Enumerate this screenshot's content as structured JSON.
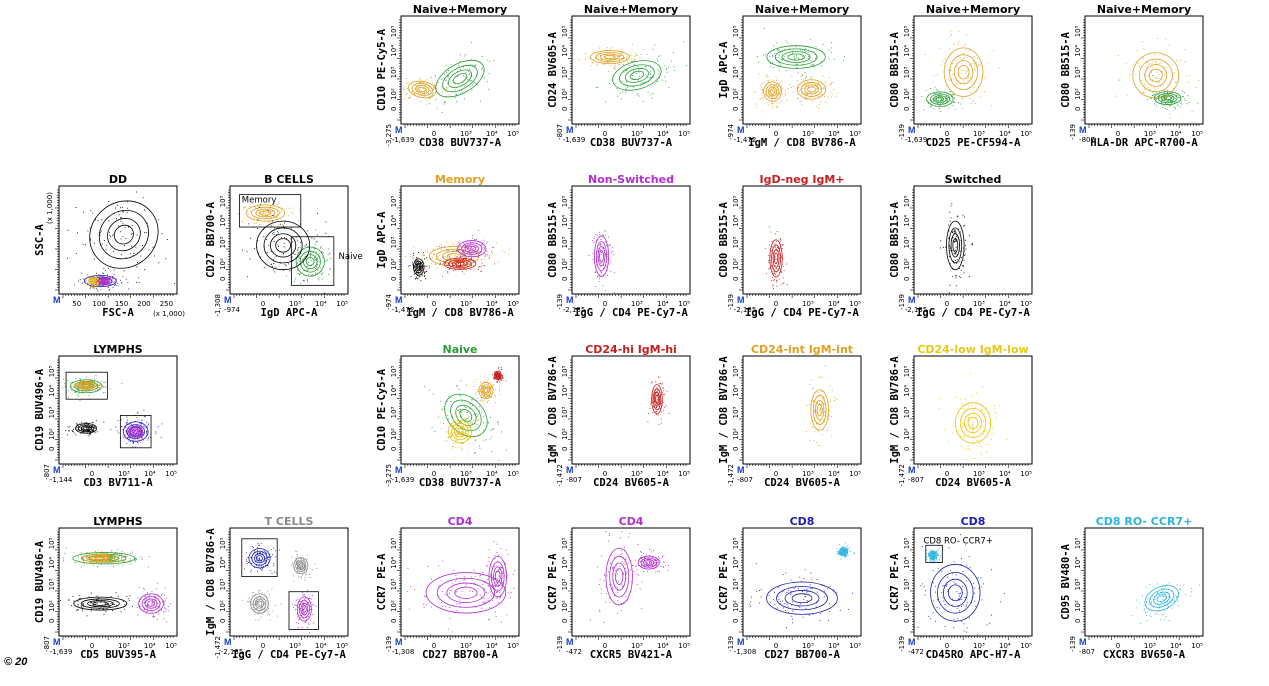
{
  "colors": {
    "green": "#2a9d3a",
    "orange": "#e0a020",
    "purple": "#b12fd0",
    "red": "#c81e1e",
    "black": "#000000",
    "grey": "#8a8a8a",
    "navy": "#1b1fb0",
    "cyan": "#2ab4e0",
    "yellow": "#f0c000",
    "gold": "#e8c81a"
  },
  "copyright": "© 20",
  "chart_data": [
    {
      "id": "p01",
      "type": "scatter",
      "title": "Naive+Memory",
      "title_color": "black",
      "xlabel": "CD38 BUV737-A",
      "ylabel": "CD10 PE-Cy5-A",
      "xmin": "-1,639",
      "ymin": "-3,275",
      "scale": "log",
      "populations": [
        {
          "color": "orange",
          "cx": 0.18,
          "cy": 0.32,
          "rx": 0.16,
          "ry": 0.1,
          "angle": 10
        },
        {
          "color": "green",
          "cx": 0.5,
          "cy": 0.42,
          "rx": 0.3,
          "ry": 0.18,
          "angle": -30
        }
      ]
    },
    {
      "id": "p02",
      "type": "scatter",
      "title": "Naive+Memory",
      "title_color": "black",
      "xlabel": "CD38 BUV737-A",
      "ylabel": "CD24 BV605-A",
      "xmin": "-1,639",
      "ymin": "-807",
      "scale": "log",
      "populations": [
        {
          "color": "orange",
          "cx": 0.32,
          "cy": 0.62,
          "rx": 0.22,
          "ry": 0.08,
          "angle": 0
        },
        {
          "color": "green",
          "cx": 0.55,
          "cy": 0.45,
          "rx": 0.28,
          "ry": 0.17,
          "angle": -15
        }
      ]
    },
    {
      "id": "p03",
      "type": "scatter",
      "title": "Naive+Memory",
      "title_color": "black",
      "xlabel": "IgM / CD8 BV786-A",
      "ylabel": "IgD APC-A",
      "xmin": "-1,472",
      "ymin": "-974",
      "scale": "log",
      "populations": [
        {
          "color": "green",
          "cx": 0.45,
          "cy": 0.62,
          "rx": 0.33,
          "ry": 0.14,
          "angle": 0
        },
        {
          "color": "orange",
          "cx": 0.25,
          "cy": 0.3,
          "rx": 0.1,
          "ry": 0.12,
          "angle": 0
        },
        {
          "color": "orange",
          "cx": 0.58,
          "cy": 0.32,
          "rx": 0.16,
          "ry": 0.12,
          "angle": 0
        }
      ]
    },
    {
      "id": "p04",
      "type": "scatter",
      "title": "Naive+Memory",
      "title_color": "black",
      "xlabel": "CD25 PE-CF594-A",
      "ylabel": "CD80 BB515-A",
      "xmin": "-1,639",
      "ymin": "-139",
      "scale": "log",
      "populations": [
        {
          "color": "orange",
          "cx": 0.42,
          "cy": 0.48,
          "rx": 0.22,
          "ry": 0.3,
          "angle": 0
        },
        {
          "color": "green",
          "cx": 0.22,
          "cy": 0.23,
          "rx": 0.15,
          "ry": 0.09,
          "angle": 0
        }
      ]
    },
    {
      "id": "p05",
      "type": "scatter",
      "title": "Naive+Memory",
      "title_color": "black",
      "xlabel": "HLA-DR APC-R700-A",
      "ylabel": "CD80 BB515-A",
      "xmin": "-807",
      "ymin": "-139",
      "scale": "log",
      "populations": [
        {
          "color": "orange",
          "cx": 0.6,
          "cy": 0.45,
          "rx": 0.26,
          "ry": 0.28,
          "angle": 0
        },
        {
          "color": "green",
          "cx": 0.7,
          "cy": 0.24,
          "rx": 0.15,
          "ry": 0.08,
          "angle": 0
        }
      ]
    },
    {
      "id": "p06",
      "type": "scatter",
      "title": "DD",
      "title_color": "black",
      "xlabel": "FSC-A",
      "ylabel": "SSC-A",
      "xmin": "",
      "ymin": "",
      "scale": "linear",
      "xunit": "(x 1,000)",
      "yunit": "(x 1,000)",
      "xticks": [
        "50",
        "100",
        "150",
        "200",
        "250"
      ],
      "populations": [
        {
          "color": "black",
          "cx": 0.55,
          "cy": 0.55,
          "rx": 0.4,
          "ry": 0.4,
          "angle": -40
        },
        {
          "color": "navy",
          "cx": 0.35,
          "cy": 0.12,
          "rx": 0.18,
          "ry": 0.07,
          "angle": 0
        },
        {
          "color": "yellow",
          "cx": 0.3,
          "cy": 0.12,
          "rx": 0.06,
          "ry": 0.04,
          "angle": 0
        },
        {
          "color": "purple",
          "cx": 0.38,
          "cy": 0.12,
          "rx": 0.06,
          "ry": 0.04,
          "angle": 0
        }
      ]
    },
    {
      "id": "p07",
      "type": "scatter",
      "title": "B CELLS",
      "title_color": "black",
      "xlabel": "IgD APC-A",
      "ylabel": "CD27 BB700-A",
      "xmin": "-974",
      "ymin": "-1,308",
      "scale": "log",
      "gates": [
        {
          "label": "Memory"
        },
        {
          "label": "Naive"
        }
      ],
      "populations": [
        {
          "color": "orange",
          "cx": 0.3,
          "cy": 0.75,
          "rx": 0.22,
          "ry": 0.1,
          "angle": 0
        },
        {
          "color": "green",
          "cx": 0.68,
          "cy": 0.3,
          "rx": 0.16,
          "ry": 0.18,
          "angle": 0
        },
        {
          "color": "black",
          "cx": 0.45,
          "cy": 0.45,
          "rx": 0.3,
          "ry": 0.3,
          "angle": 0
        }
      ]
    },
    {
      "id": "p08",
      "type": "scatter",
      "title": "Memory",
      "title_color": "orange",
      "xlabel": "IgM / CD8 BV786-A",
      "ylabel": "IgD APC-A",
      "xmin": "-1,472",
      "ymin": "-974",
      "scale": "log",
      "populations": [
        {
          "color": "black",
          "cx": 0.15,
          "cy": 0.25,
          "rx": 0.06,
          "ry": 0.1,
          "angle": 0
        },
        {
          "color": "orange",
          "cx": 0.45,
          "cy": 0.35,
          "rx": 0.28,
          "ry": 0.12,
          "angle": 0
        },
        {
          "color": "purple",
          "cx": 0.6,
          "cy": 0.42,
          "rx": 0.16,
          "ry": 0.1,
          "angle": 0
        },
        {
          "color": "red",
          "cx": 0.5,
          "cy": 0.28,
          "rx": 0.18,
          "ry": 0.07,
          "angle": 0
        }
      ]
    },
    {
      "id": "p09",
      "type": "scatter",
      "title": "Non-Switched",
      "title_color": "purple",
      "xlabel": "IgG / CD4 PE-Cy7-A",
      "ylabel": "CD80 BB515-A",
      "xmin": "-2,135",
      "ymin": "-139",
      "scale": "log",
      "populations": [
        {
          "color": "purple",
          "cx": 0.25,
          "cy": 0.35,
          "rx": 0.08,
          "ry": 0.25,
          "angle": 0
        }
      ]
    },
    {
      "id": "p10",
      "type": "scatter",
      "title": "IgD-neg IgM+",
      "title_color": "red",
      "xlabel": "IgG / CD4 PE-Cy7-A",
      "ylabel": "CD80 BB515-A",
      "xmin": "-2,135",
      "ymin": "-139",
      "scale": "log",
      "populations": [
        {
          "color": "red",
          "cx": 0.28,
          "cy": 0.33,
          "rx": 0.07,
          "ry": 0.23,
          "angle": 0
        }
      ]
    },
    {
      "id": "p11",
      "type": "scatter",
      "title": "Switched",
      "title_color": "black",
      "xlabel": "IgG / CD4 PE-Cy7-A",
      "ylabel": "CD80 BB515-A",
      "xmin": "-2,135",
      "ymin": "-139",
      "scale": "log",
      "populations": [
        {
          "color": "black",
          "cx": 0.35,
          "cy": 0.45,
          "rx": 0.1,
          "ry": 0.3,
          "angle": 0
        }
      ]
    },
    {
      "id": "p12",
      "type": "scatter",
      "title": "LYMPHS",
      "title_color": "black",
      "xlabel": "CD3 BV711-A",
      "ylabel": "CD19 BUV496-A",
      "xmin": "-1,144",
      "ymin": "-807",
      "scale": "log",
      "populations": [
        {
          "color": "green",
          "cx": 0.23,
          "cy": 0.72,
          "rx": 0.18,
          "ry": 0.08,
          "angle": 0
        },
        {
          "color": "orange",
          "cx": 0.23,
          "cy": 0.73,
          "rx": 0.12,
          "ry": 0.05,
          "angle": 0
        },
        {
          "color": "black",
          "cx": 0.23,
          "cy": 0.33,
          "rx": 0.12,
          "ry": 0.06,
          "angle": 0
        },
        {
          "color": "navy",
          "cx": 0.65,
          "cy": 0.3,
          "rx": 0.14,
          "ry": 0.12,
          "angle": 0
        },
        {
          "color": "purple",
          "cx": 0.65,
          "cy": 0.3,
          "rx": 0.08,
          "ry": 0.07,
          "angle": 0
        }
      ]
    },
    {
      "id": "p13",
      "type": "scatter",
      "title": "Naive",
      "title_color": "green",
      "xlabel": "CD38 BUV737-A",
      "ylabel": "CD10 PE-Cy5-A",
      "xmin": "-1,639",
      "ymin": "-3,275",
      "scale": "log",
      "populations": [
        {
          "color": "green",
          "cx": 0.55,
          "cy": 0.45,
          "rx": 0.2,
          "ry": 0.3,
          "angle": -45
        },
        {
          "color": "yellow",
          "cx": 0.5,
          "cy": 0.3,
          "rx": 0.13,
          "ry": 0.14,
          "angle": 0
        },
        {
          "color": "orange",
          "cx": 0.72,
          "cy": 0.68,
          "rx": 0.08,
          "ry": 0.1,
          "angle": 0
        },
        {
          "color": "red",
          "cx": 0.82,
          "cy": 0.82,
          "rx": 0.04,
          "ry": 0.05,
          "angle": 0
        }
      ]
    },
    {
      "id": "p14",
      "type": "scatter",
      "title": "CD24-hi IgM-hi",
      "title_color": "red",
      "xlabel": "CD24 BV605-A",
      "ylabel": "IgM / CD8 BV786-A",
      "xmin": "-807",
      "ymin": "-1,472",
      "scale": "log",
      "populations": [
        {
          "color": "red",
          "cx": 0.72,
          "cy": 0.6,
          "rx": 0.06,
          "ry": 0.18,
          "angle": 0
        }
      ]
    },
    {
      "id": "p15",
      "type": "scatter",
      "title": "CD24-int IgM-int",
      "title_color": "orange",
      "xlabel": "CD24 BV605-A",
      "ylabel": "IgM / CD8 BV786-A",
      "xmin": "-807",
      "ymin": "-1,472",
      "scale": "log",
      "populations": [
        {
          "color": "orange",
          "cx": 0.65,
          "cy": 0.5,
          "rx": 0.1,
          "ry": 0.25,
          "angle": 0
        }
      ]
    },
    {
      "id": "p16",
      "type": "scatter",
      "title": "CD24-low IgM-low",
      "title_color": "gold",
      "xlabel": "CD24 BV605-A",
      "ylabel": "IgM / CD8 BV786-A",
      "xmin": "-807",
      "ymin": "-1,472",
      "scale": "log",
      "populations": [
        {
          "color": "yellow",
          "cx": 0.5,
          "cy": 0.38,
          "rx": 0.2,
          "ry": 0.25,
          "angle": 0
        }
      ]
    },
    {
      "id": "p17",
      "type": "scatter",
      "title": "LYMPHS",
      "title_color": "black",
      "xlabel": "CD5 BUV395-A",
      "ylabel": "CD19 BUV496-A",
      "xmin": "-1,639",
      "ymin": "-807",
      "scale": "log",
      "populations": [
        {
          "color": "green",
          "cx": 0.38,
          "cy": 0.72,
          "rx": 0.35,
          "ry": 0.07,
          "angle": 0
        },
        {
          "color": "orange",
          "cx": 0.35,
          "cy": 0.72,
          "rx": 0.2,
          "ry": 0.05,
          "angle": 0
        },
        {
          "color": "black",
          "cx": 0.35,
          "cy": 0.3,
          "rx": 0.3,
          "ry": 0.08,
          "angle": 0
        },
        {
          "color": "purple",
          "cx": 0.78,
          "cy": 0.3,
          "rx": 0.14,
          "ry": 0.12,
          "angle": 0
        }
      ]
    },
    {
      "id": "p18",
      "type": "scatter",
      "title": "T CELLS",
      "title_color": "grey",
      "xlabel": "IgG / CD4 PE-Cy7-A",
      "ylabel": "IgM / CD8 BV786-A",
      "xmin": "-2,135",
      "ymin": "-1,472",
      "scale": "log",
      "populations": [
        {
          "color": "navy",
          "cx": 0.25,
          "cy": 0.72,
          "rx": 0.12,
          "ry": 0.12,
          "angle": 0
        },
        {
          "color": "purple",
          "cx": 0.63,
          "cy": 0.25,
          "rx": 0.08,
          "ry": 0.15,
          "angle": 0
        },
        {
          "color": "grey",
          "cx": 0.25,
          "cy": 0.3,
          "rx": 0.1,
          "ry": 0.12,
          "angle": 0
        },
        {
          "color": "grey",
          "cx": 0.6,
          "cy": 0.65,
          "rx": 0.08,
          "ry": 0.1,
          "angle": 0
        }
      ]
    },
    {
      "id": "p19",
      "type": "scatter",
      "title": "CD4",
      "title_color": "purple",
      "xlabel": "CD27 BB700-A",
      "ylabel": "CCR7 PE-A",
      "xmin": "-1,308",
      "ymin": "-139",
      "scale": "log",
      "populations": [
        {
          "color": "purple",
          "cx": 0.55,
          "cy": 0.4,
          "rx": 0.45,
          "ry": 0.25,
          "angle": 0
        },
        {
          "color": "purple",
          "cx": 0.82,
          "cy": 0.55,
          "rx": 0.1,
          "ry": 0.25,
          "angle": 0
        }
      ]
    },
    {
      "id": "p20",
      "type": "scatter",
      "title": "CD4",
      "title_color": "purple",
      "xlabel": "CXCR5 BV421-A",
      "ylabel": "CCR7 PE-A",
      "xmin": "-472",
      "ymin": "-139",
      "scale": "log",
      "populations": [
        {
          "color": "purple",
          "cx": 0.4,
          "cy": 0.55,
          "rx": 0.15,
          "ry": 0.35,
          "angle": 0
        },
        {
          "color": "purple",
          "cx": 0.65,
          "cy": 0.68,
          "rx": 0.12,
          "ry": 0.08,
          "angle": 0
        }
      ]
    },
    {
      "id": "p21",
      "type": "scatter",
      "title": "CD8",
      "title_color": "navy",
      "xlabel": "CD27 BB700-A",
      "ylabel": "CCR7 PE-A",
      "xmin": "-1,308",
      "ymin": "-139",
      "scale": "log",
      "populations": [
        {
          "color": "navy",
          "cx": 0.5,
          "cy": 0.35,
          "rx": 0.4,
          "ry": 0.2,
          "angle": 0
        },
        {
          "color": "cyan",
          "cx": 0.85,
          "cy": 0.78,
          "rx": 0.05,
          "ry": 0.05,
          "angle": 0
        }
      ]
    },
    {
      "id": "p22",
      "type": "scatter",
      "title": "CD8",
      "title_color": "navy",
      "xlabel": "CD45RO APC-H7-A",
      "ylabel": "CCR7 PE-A",
      "xmin": "-472",
      "ymin": "-139",
      "scale": "log",
      "gates": [
        {
          "label": "CD8 RO- CCR7+"
        }
      ],
      "populations": [
        {
          "color": "navy",
          "cx": 0.35,
          "cy": 0.4,
          "rx": 0.28,
          "ry": 0.35,
          "angle": 0
        },
        {
          "color": "cyan",
          "cx": 0.16,
          "cy": 0.75,
          "rx": 0.05,
          "ry": 0.05,
          "angle": 0
        }
      ]
    },
    {
      "id": "p23",
      "type": "scatter",
      "title": "CD8 RO- CCR7+",
      "title_color": "cyan",
      "xlabel": "CXCR3 BV650-A",
      "ylabel": "CD95 BV480-A",
      "xmin": "-807",
      "ymin": "-139",
      "scale": "log",
      "populations": [
        {
          "color": "cyan",
          "cx": 0.65,
          "cy": 0.35,
          "rx": 0.2,
          "ry": 0.14,
          "angle": -25
        }
      ]
    }
  ]
}
